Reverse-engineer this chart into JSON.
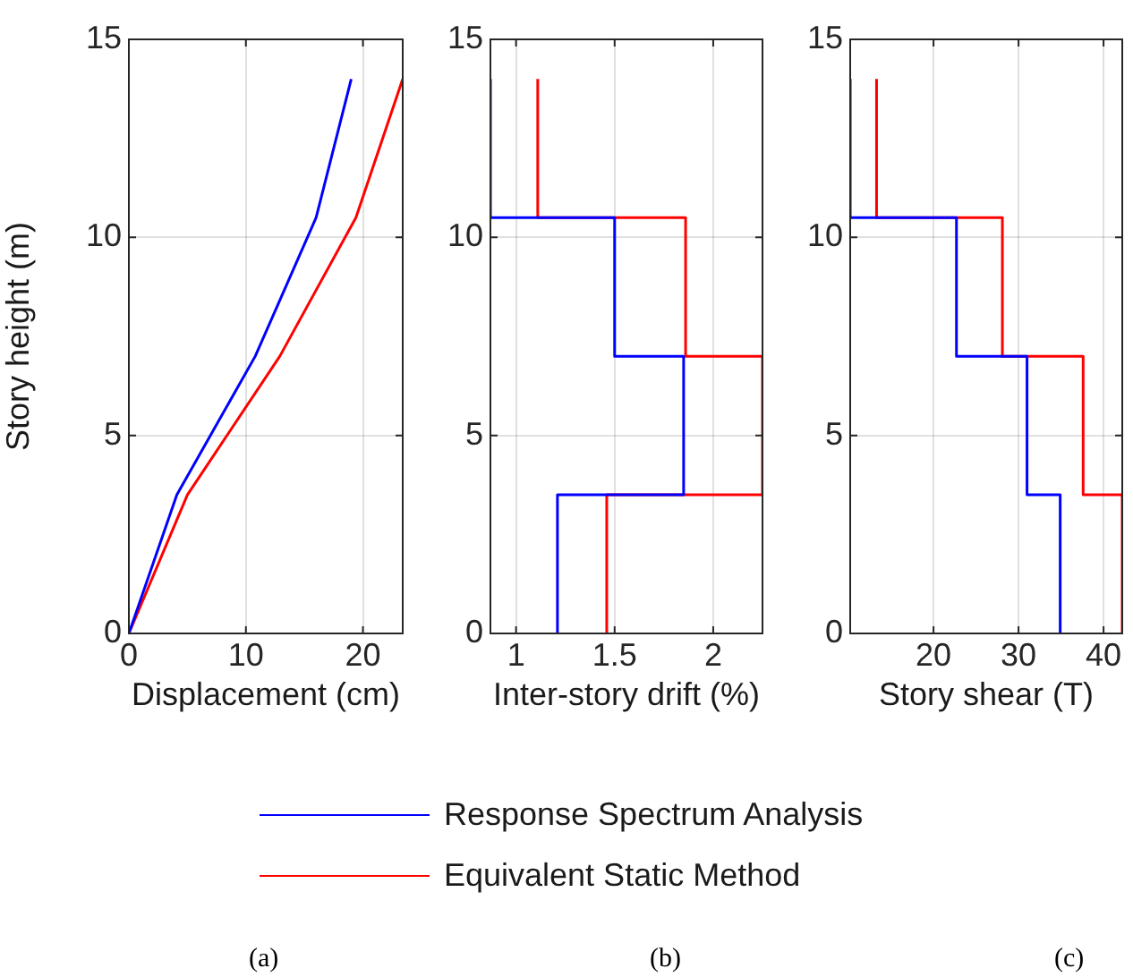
{
  "chart_data": [
    {
      "type": "line",
      "xlabel": "Displacement (cm)",
      "ylabel": "Story height (m)",
      "xlim": [
        0,
        23.4
      ],
      "xticks": [
        0,
        10,
        20
      ],
      "ylim": [
        0,
        15
      ],
      "yticks": [
        0,
        5,
        10,
        15
      ],
      "grid": true,
      "legend": "bottom",
      "annotations": [
        "(a)"
      ],
      "series": [
        {
          "name": "Response Spectrum Analysis",
          "color": "#0000ff",
          "x": [
            0,
            4.1,
            10.8,
            16,
            19
          ],
          "values": [
            0,
            3.5,
            7,
            10.5,
            14
          ]
        },
        {
          "name": "Equivalent Static Method",
          "color": "#ff0000",
          "x": [
            0,
            5,
            12.9,
            19.4,
            23.4
          ],
          "values": [
            0,
            3.5,
            7,
            10.5,
            14
          ]
        }
      ]
    },
    {
      "type": "line",
      "xlabel": "Inter-story drift (%)",
      "xlim": [
        0.87,
        2.25
      ],
      "xticks": [
        1,
        1.5,
        2
      ],
      "ylim": [
        0,
        15
      ],
      "yticks": [
        0,
        5,
        10,
        15
      ],
      "grid": true,
      "annotations": [
        "(b)"
      ],
      "series": [
        {
          "color": "#0000ff",
          "x": [
            1.21,
            1.21,
            1.85,
            1.85,
            1.5,
            1.5,
            0.87,
            0.87
          ],
          "values": [
            0,
            3.5,
            3.5,
            7,
            7,
            10.5,
            10.5,
            14
          ]
        },
        {
          "color": "#ff0000",
          "x": [
            1.46,
            1.46,
            2.25,
            2.25,
            1.86,
            1.86,
            1.11,
            1.11
          ],
          "values": [
            0,
            3.5,
            3.5,
            7,
            7,
            10.5,
            10.5,
            14
          ]
        }
      ]
    },
    {
      "type": "line",
      "xlabel": "Story shear (T)",
      "xlim": [
        10.2,
        42.2
      ],
      "xticks": [
        20,
        30,
        40
      ],
      "ylim": [
        0,
        15
      ],
      "yticks": [
        0,
        5,
        10,
        15
      ],
      "grid": true,
      "annotations": [
        "(c)"
      ],
      "series": [
        {
          "color": "#0000ff",
          "x": [
            34.9,
            34.9,
            31,
            31,
            22.7,
            22.7,
            10.2,
            10.2
          ],
          "values": [
            0,
            3.5,
            3.5,
            7,
            7,
            10.5,
            10.5,
            14
          ]
        },
        {
          "color": "#ff0000",
          "x": [
            42.2,
            42.2,
            37.6,
            37.6,
            28.1,
            28.1,
            13.3,
            13.3
          ],
          "values": [
            0,
            3.5,
            3.5,
            7,
            7,
            10.5,
            10.5,
            14
          ]
        }
      ]
    }
  ]
}
